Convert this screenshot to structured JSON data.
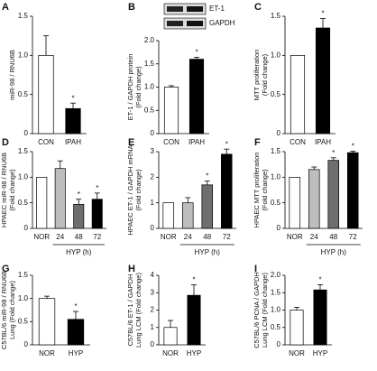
{
  "chart_data": [
    {
      "type": "bar",
      "panel_label": "A",
      "ylabel": [
        "miR-98 / RNU6B"
      ],
      "categories": [
        "CON",
        "IPAH"
      ],
      "values": [
        1.0,
        0.32
      ],
      "errors": [
        0.25,
        0.07
      ],
      "annotations": [
        null,
        "*"
      ],
      "colors": [
        "#ffffff",
        "#000000"
      ],
      "ylim": [
        0,
        1.5
      ],
      "yticks": [
        0,
        0.5,
        {
          "value": 1,
          "label": "1.0"
        },
        1.5
      ]
    },
    {
      "type": "bar",
      "panel_label": "B",
      "ylabel": [
        "ET-1 / GAPDH protein",
        "(Fold change)"
      ],
      "blot_labels": [
        "ET-1",
        "GAPDH"
      ],
      "categories": [
        "CON",
        "IPAH"
      ],
      "values": [
        1.0,
        1.6
      ],
      "errors": [
        0.03,
        0.04
      ],
      "annotations": [
        null,
        "*"
      ],
      "colors": [
        "#ffffff",
        "#000000"
      ],
      "ylim": [
        0,
        2
      ],
      "yticks": [
        0,
        0.5,
        {
          "value": 1,
          "label": "1.0"
        },
        1.5,
        {
          "value": 2,
          "label": "2.0"
        }
      ]
    },
    {
      "type": "bar",
      "panel_label": "C",
      "ylabel": [
        "MTT proliferation",
        "(Fold change)"
      ],
      "categories": [
        "CON",
        "IPAH"
      ],
      "values": [
        1.0,
        1.35
      ],
      "errors": [
        null,
        0.12
      ],
      "annotations": [
        null,
        "*"
      ],
      "colors": [
        "#ffffff",
        "#000000"
      ],
      "ylim": [
        0,
        1.5
      ],
      "yticks": [
        0,
        0.5,
        {
          "value": 1,
          "label": "1.0"
        },
        1.5
      ]
    },
    {
      "type": "bar",
      "panel_label": "D",
      "ylabel": [
        "HPAEC miR-98 / RNU6B",
        "(Fold change)"
      ],
      "categories": [
        "NOR",
        "24",
        "48",
        "72"
      ],
      "group_label": "HYP (h)",
      "values": [
        1.0,
        1.17,
        0.47,
        0.57
      ],
      "errors": [
        null,
        0.15,
        0.1,
        0.12
      ],
      "annotations": [
        null,
        null,
        "*",
        "*"
      ],
      "colors": [
        "#ffffff",
        "#bdbdbd",
        "#6e6e6e",
        "#000000"
      ],
      "ylim": [
        0,
        1.5
      ],
      "yticks": [
        0,
        0.5,
        {
          "value": 1,
          "label": "1.0"
        },
        1.5
      ]
    },
    {
      "type": "bar",
      "panel_label": "E",
      "ylabel": [
        "HPAEC ET-1 / GAPDH mRNA",
        "(Fold change)"
      ],
      "categories": [
        "NOR",
        "24",
        "48",
        "72"
      ],
      "group_label": "HYP (h)",
      "values": [
        1.0,
        1.0,
        1.7,
        2.9
      ],
      "errors": [
        null,
        0.2,
        0.15,
        0.2
      ],
      "annotations": [
        null,
        null,
        "*",
        "*"
      ],
      "colors": [
        "#ffffff",
        "#bdbdbd",
        "#6e6e6e",
        "#000000"
      ],
      "ylim": [
        0,
        3
      ],
      "yticks": [
        0,
        1,
        2,
        3
      ]
    },
    {
      "type": "bar",
      "panel_label": "F",
      "ylabel": [
        "HPAEC MTT proliferation",
        "(Fold change)"
      ],
      "categories": [
        "NOR",
        "24",
        "48",
        "72"
      ],
      "group_label": "HYP (h)",
      "values": [
        1.0,
        1.15,
        1.33,
        1.48
      ],
      "errors": [
        null,
        0.05,
        0.05,
        0.03
      ],
      "annotations": [
        null,
        null,
        "*",
        "*"
      ],
      "colors": [
        "#ffffff",
        "#bdbdbd",
        "#6e6e6e",
        "#000000"
      ],
      "ylim": [
        0,
        1.5
      ],
      "yticks": [
        0,
        0.5,
        {
          "value": 1,
          "label": "1.0"
        },
        1.5
      ]
    },
    {
      "type": "bar",
      "panel_label": "G",
      "ylabel": [
        "C57BL/6 miR-98 / RNU6B",
        "Lung (Fold change)"
      ],
      "categories": [
        "NOR",
        "HYP"
      ],
      "values": [
        1.0,
        0.55
      ],
      "errors": [
        0.05,
        0.17
      ],
      "annotations": [
        null,
        "*"
      ],
      "colors": [
        "#ffffff",
        "#000000"
      ],
      "ylim": [
        0,
        1.5
      ],
      "yticks": [
        0,
        0.5,
        {
          "value": 1,
          "label": "1.0"
        },
        1.5
      ]
    },
    {
      "type": "bar",
      "panel_label": "H",
      "ylabel": [
        "C57BL/6 ET-1 / GAPDH",
        "Lung LCM (Fold change)"
      ],
      "categories": [
        "NOR",
        "HYP"
      ],
      "values": [
        1.0,
        2.85
      ],
      "errors": [
        0.4,
        0.6
      ],
      "annotations": [
        null,
        "*"
      ],
      "colors": [
        "#ffffff",
        "#000000"
      ],
      "ylim": [
        0,
        4
      ],
      "yticks": [
        0,
        1,
        2,
        3,
        4
      ]
    },
    {
      "type": "bar",
      "panel_label": "I",
      "ylabel": [
        "C57BL/6 PCNA / GAPDH",
        "Lung LCM (Fold change)"
      ],
      "categories": [
        "NOR",
        "HYP"
      ],
      "values": [
        1.0,
        1.58
      ],
      "errors": [
        0.08,
        0.15
      ],
      "annotations": [
        null,
        "*"
      ],
      "colors": [
        "#ffffff",
        "#000000"
      ],
      "ylim": [
        0,
        2
      ],
      "yticks": [
        0,
        0.5,
        {
          "value": 1,
          "label": "1.0"
        },
        1.5,
        {
          "value": 2,
          "label": "2.0"
        }
      ]
    }
  ]
}
